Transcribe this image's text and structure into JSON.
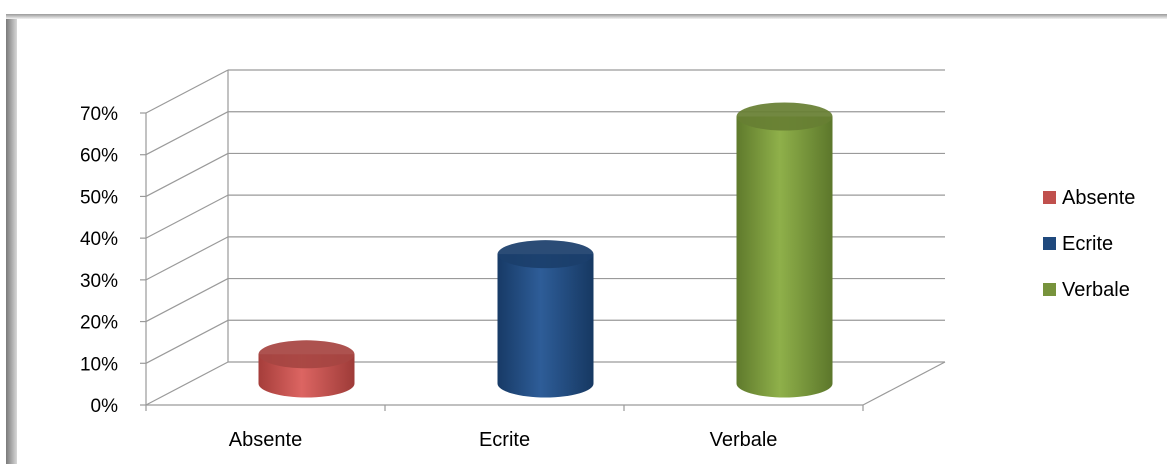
{
  "chart_data": {
    "type": "bar",
    "style": "3d-cylinder",
    "categories": [
      "Absente",
      "Ecrite",
      "Verbale"
    ],
    "values": [
      7,
      31,
      64
    ],
    "value_unit": "%",
    "ylim": [
      0,
      70
    ],
    "yticks": [
      "0%",
      "10%",
      "20%",
      "30%",
      "40%",
      "50%",
      "60%",
      "70%"
    ],
    "title": "",
    "xlabel": "",
    "ylabel": "",
    "grid": true,
    "legend_position": "right",
    "legend": [
      {
        "label": "Absente",
        "color": "#c0504d"
      },
      {
        "label": "Ecrite",
        "color": "#1f497d"
      },
      {
        "label": "Verbale",
        "color": "#77933c"
      }
    ],
    "colors": [
      "#c0504d",
      "#1f497d",
      "#77933c"
    ]
  }
}
